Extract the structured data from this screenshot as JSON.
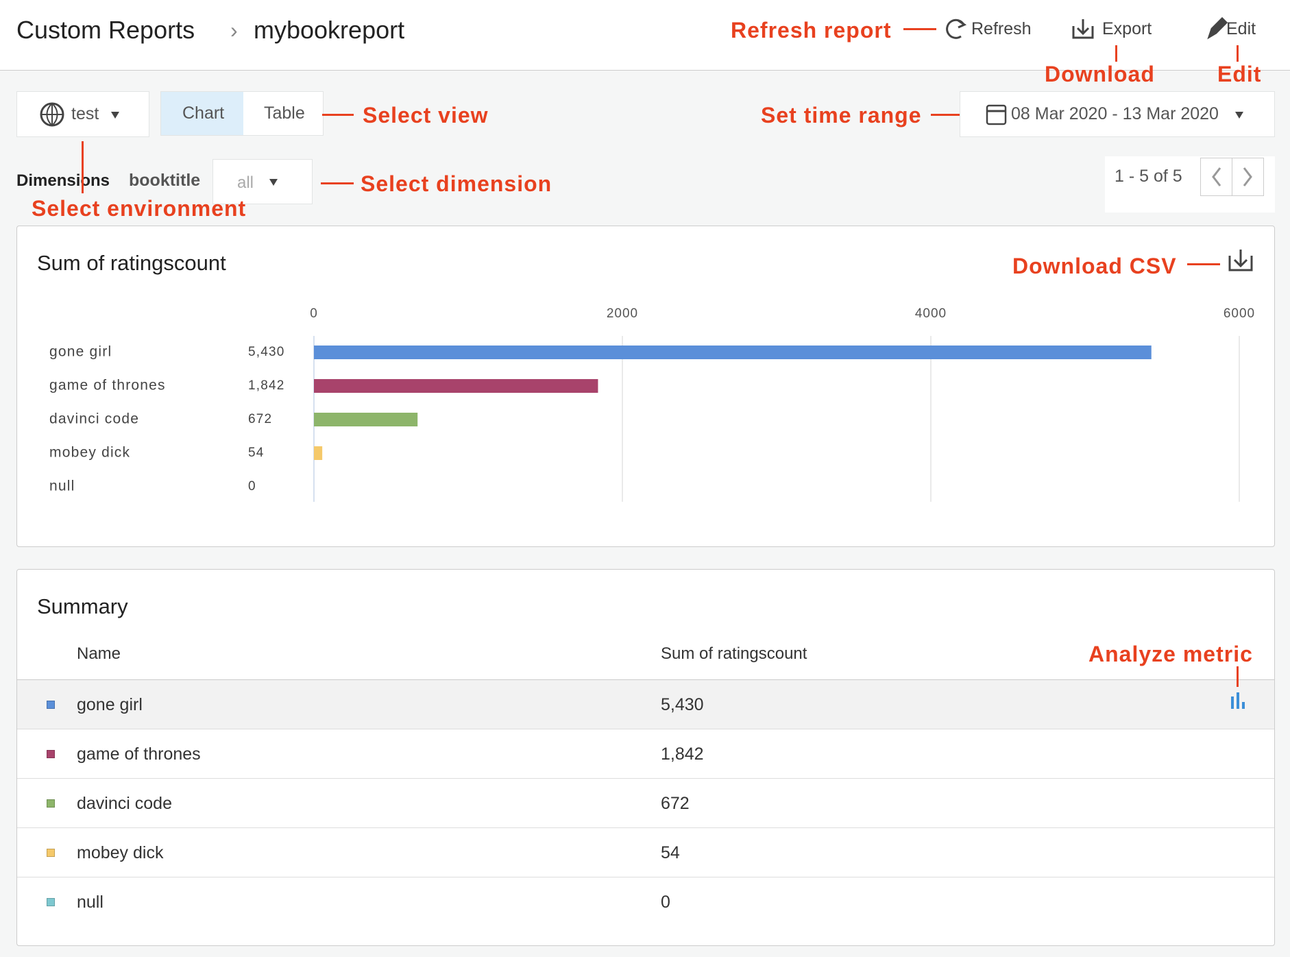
{
  "header": {
    "breadcrumb": [
      "Custom Reports",
      "mybookreport"
    ],
    "actions": [
      "Refresh",
      "Export",
      "Edit"
    ]
  },
  "toolbar": {
    "environment": "test",
    "views": [
      "Chart",
      "Table"
    ],
    "date_range": "08 Mar 2020 - 13 Mar 2020",
    "dimensions_label": "Dimensions",
    "dimension": "booktitle",
    "dimension_filter": "all",
    "pagination": "1 - 5 of 5"
  },
  "annotations": {
    "refresh": "Refresh report",
    "download": "Download",
    "edit": "Edit",
    "select_view": "Select view",
    "time_range": "Set time range",
    "environment": "Select environment",
    "dimension": "Select dimension",
    "csv": "Download CSV",
    "analyze": "Analyze metric"
  },
  "chart_data": {
    "type": "bar",
    "orientation": "horizontal",
    "title": "Sum of ratingscount",
    "categories": [
      "gone girl",
      "game of thrones",
      "davinci code",
      "mobey dick",
      "null"
    ],
    "values": [
      5430,
      1842,
      672,
      54,
      0
    ],
    "value_labels": [
      "5,430",
      "1,842",
      "672",
      "54",
      "0"
    ],
    "colors": [
      "#5b8fd9",
      "#a8436b",
      "#8db56a",
      "#f5c96a",
      "#7ec8d0"
    ],
    "xlim": [
      0,
      6000
    ],
    "xticks": [
      0,
      2000,
      4000,
      6000
    ],
    "grid": true
  },
  "summary": {
    "title": "Summary",
    "columns": [
      "Name",
      "Sum of ratingscount"
    ],
    "rows": [
      [
        "gone girl",
        "5,430"
      ],
      [
        "game of thrones",
        "1,842"
      ],
      [
        "davinci code",
        "672"
      ],
      [
        "mobey dick",
        "54"
      ],
      [
        "null",
        "0"
      ]
    ]
  }
}
